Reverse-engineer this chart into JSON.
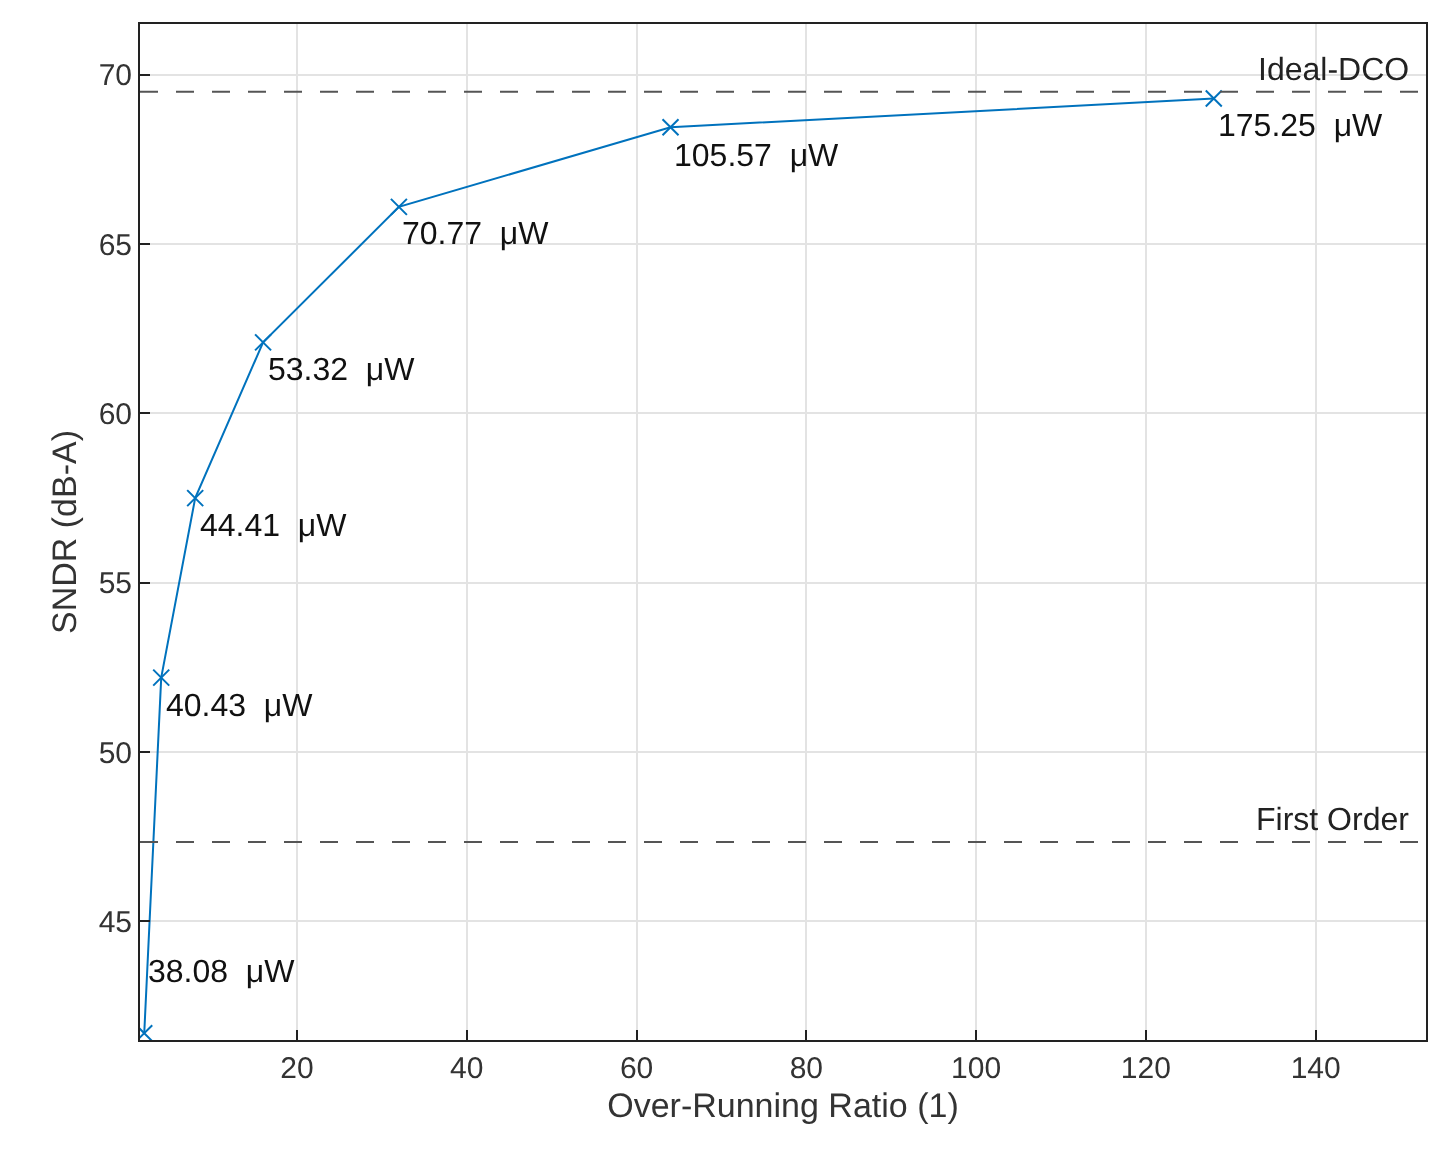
{
  "chart_data": {
    "type": "line",
    "xlabel": "Over-Running Ratio (1)",
    "ylabel": "SNDR (dB-A)",
    "x": [
      2,
      4,
      8,
      16,
      32,
      64,
      128
    ],
    "series": [
      {
        "color": "#0072bd",
        "values": [
          41.7,
          52.2,
          57.5,
          62.1,
          66.1,
          68.45,
          69.3
        ]
      }
    ],
    "xlim": [
      1.5,
      153
    ],
    "xticks": [
      20,
      40,
      60,
      80,
      100,
      120,
      140
    ],
    "ylim": [
      41.5,
      71.5
    ],
    "yticks": [
      45,
      50,
      55,
      60,
      65,
      70
    ],
    "grid": true,
    "marker": "cross",
    "line_style": "solid",
    "legend": false,
    "ref_lines": [
      {
        "axis": "y",
        "value": 69.5,
        "label": "Ideal-DCO",
        "color": "#555555",
        "line_style": "dashed"
      },
      {
        "axis": "y",
        "value": 47.35,
        "label": "First Order",
        "color": "#555555",
        "line_style": "dashed"
      }
    ],
    "annotations": [
      {
        "text": "38.08  μW",
        "x": 2,
        "y": 41.7
      },
      {
        "text": "40.43  μW",
        "x": 4,
        "y": 52.2
      },
      {
        "text": "44.41  μW",
        "x": 8,
        "y": 57.5
      },
      {
        "text": "53.32  μW",
        "x": 16,
        "y": 62.1
      },
      {
        "text": "70.77  μW",
        "x": 32,
        "y": 66.1
      },
      {
        "text": "105.57  μW",
        "x": 64,
        "y": 68.45
      },
      {
        "text": "175.25  μW",
        "x": 128,
        "y": 69.3
      }
    ]
  }
}
